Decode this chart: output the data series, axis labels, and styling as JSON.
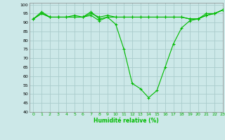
{
  "xlabel": "Humidité relative (%)",
  "background_color": "#cce8e8",
  "grid_color": "#aacccc",
  "line_color": "#00bb00",
  "xlim": [
    -0.5,
    23
  ],
  "ylim": [
    40,
    101
  ],
  "yticks": [
    40,
    45,
    50,
    55,
    60,
    65,
    70,
    75,
    80,
    85,
    90,
    95,
    100
  ],
  "xticks": [
    0,
    1,
    2,
    3,
    4,
    5,
    6,
    7,
    8,
    9,
    10,
    11,
    12,
    13,
    14,
    15,
    16,
    17,
    18,
    19,
    20,
    21,
    22,
    23
  ],
  "series": [
    [
      92,
      96,
      93,
      93,
      93,
      93,
      93,
      94,
      91,
      93,
      89,
      75,
      56,
      53,
      48,
      52,
      65,
      78,
      87,
      91,
      92,
      94,
      95,
      97
    ],
    [
      92,
      95,
      93,
      93,
      93,
      93,
      93,
      96,
      92,
      93,
      93,
      93,
      93,
      93,
      93,
      93,
      93,
      93,
      93,
      92,
      92,
      94,
      95,
      97
    ],
    [
      92,
      95,
      93,
      93,
      93,
      94,
      93,
      95,
      93,
      94,
      93,
      93,
      93,
      93,
      93,
      93,
      93,
      93,
      93,
      92,
      92,
      95,
      95,
      97
    ]
  ]
}
